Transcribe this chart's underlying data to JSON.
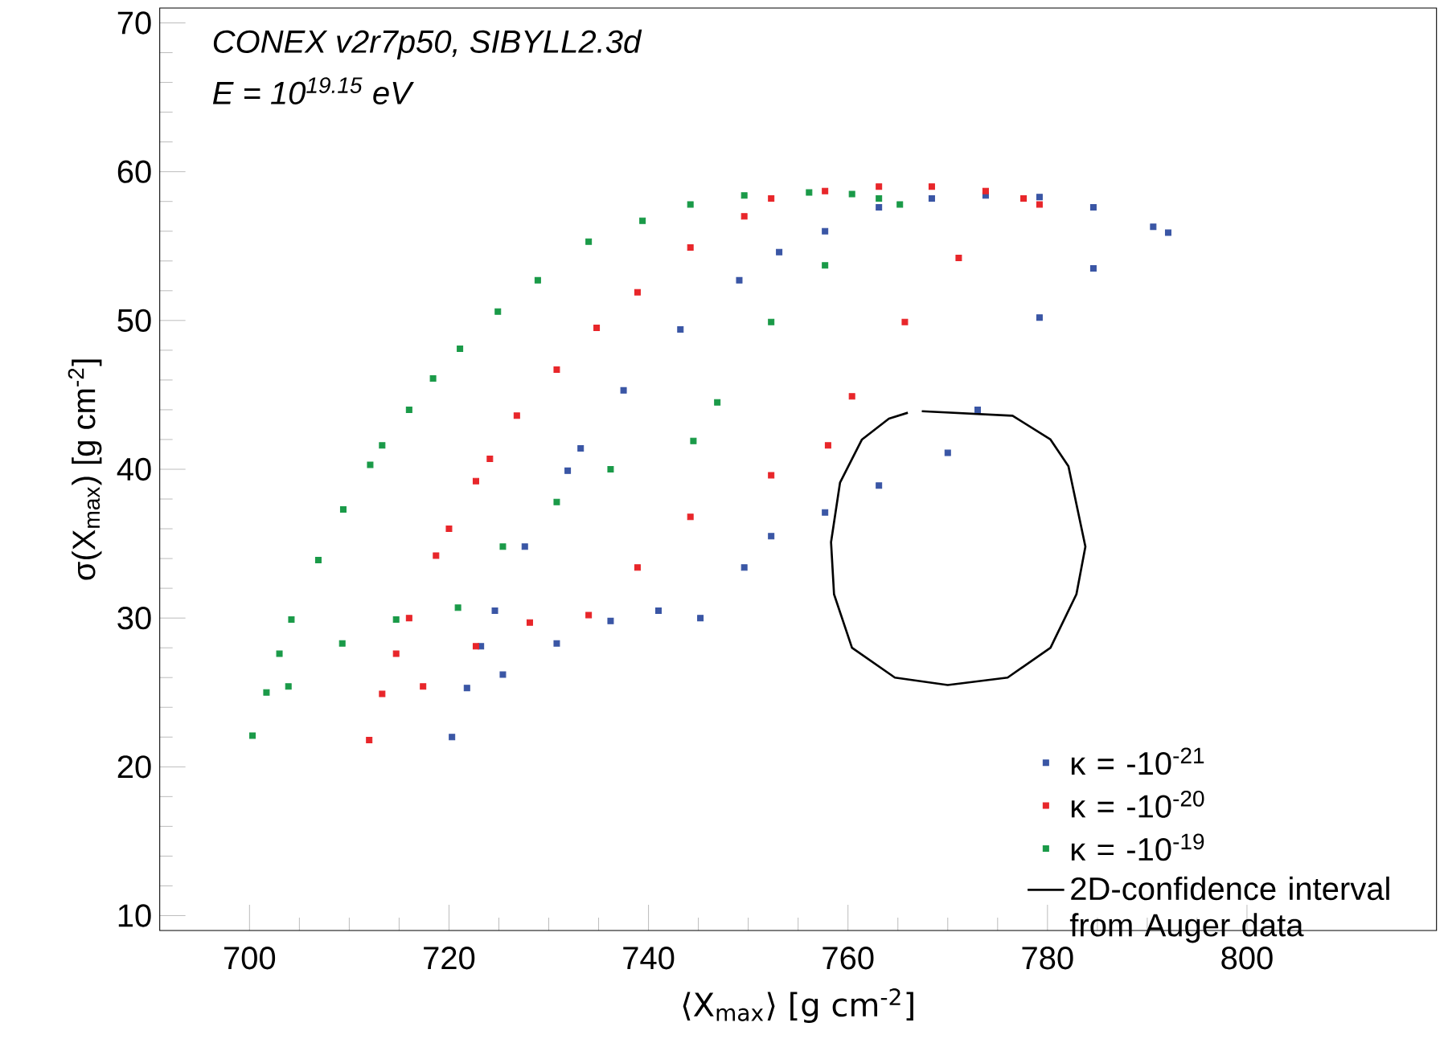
{
  "chart_data": {
    "type": "scatter",
    "xlabel": "⟨X$_{max}$⟩ [g cm$^{-2}$]",
    "ylabel": "σ(X$_{max}$) [g cm$^{-2}$]",
    "annotations": [
      "CONEX v2r7p50, SIBYLL2.3d",
      "E = 10$^{19.15}$ eV"
    ],
    "xlim": [
      691,
      819
    ],
    "ylim": [
      9,
      71
    ],
    "xticks": [
      700,
      720,
      740,
      760,
      780,
      800
    ],
    "yticks": [
      10,
      20,
      30,
      40,
      50,
      60,
      70
    ],
    "marker": "square",
    "legend": "bottom right",
    "series": [
      {
        "name": "κ = -10$^{-21}$",
        "color": "#3a56a5",
        "x": [
          720.3,
          725.4,
          730.8,
          736.2,
          741.0,
          745.2,
          749.6,
          752.3,
          757.7,
          763.1,
          770.0,
          773.0,
          779.2,
          784.6,
          792.1,
          790.6,
          784.6,
          779.2,
          773.8,
          768.4,
          763.1,
          757.7,
          753.1,
          749.1,
          743.2,
          737.5,
          733.2,
          731.9,
          727.6,
          724.6,
          723.2,
          721.8
        ],
        "values": [
          22.0,
          26.2,
          28.3,
          29.8,
          30.5,
          30.0,
          33.4,
          35.5,
          37.1,
          38.9,
          41.1,
          44.0,
          50.2,
          53.5,
          55.9,
          56.3,
          57.6,
          58.3,
          58.4,
          58.2,
          57.6,
          56.0,
          54.6,
          52.7,
          49.4,
          45.3,
          41.4,
          39.9,
          34.8,
          30.5,
          28.1,
          25.3
        ]
      },
      {
        "name": "κ = -10$^{-20}$",
        "color": "#e8262a",
        "x": [
          712.0,
          717.4,
          722.7,
          728.1,
          734.0,
          738.9,
          744.2,
          752.3,
          758.0,
          760.4,
          765.7,
          771.1,
          779.2,
          777.6,
          773.8,
          768.4,
          763.1,
          757.7,
          752.3,
          749.6,
          744.2,
          738.9,
          734.8,
          730.8,
          726.8,
          724.1,
          722.7,
          720.0,
          718.7,
          716.0,
          714.7,
          713.3
        ],
        "values": [
          21.8,
          25.4,
          28.1,
          29.7,
          30.2,
          33.4,
          36.8,
          39.6,
          41.6,
          44.9,
          49.9,
          54.2,
          57.8,
          58.2,
          58.7,
          59.0,
          59.0,
          58.7,
          58.2,
          57.0,
          54.9,
          51.9,
          49.5,
          46.7,
          43.6,
          40.7,
          39.2,
          36.0,
          34.2,
          30.0,
          27.6,
          24.9
        ]
      },
      {
        "name": "κ = -10$^{-19}$",
        "color": "#1a9a48",
        "x": [
          700.3,
          703.9,
          709.3,
          714.7,
          720.9,
          725.4,
          730.8,
          736.2,
          744.5,
          746.9,
          752.3,
          757.7,
          765.2,
          763.1,
          760.4,
          756.1,
          749.6,
          744.2,
          739.4,
          734.0,
          728.9,
          724.9,
          721.1,
          718.4,
          716.0,
          713.3,
          712.1,
          709.4,
          706.9,
          704.2,
          703.0,
          701.7
        ],
        "values": [
          22.1,
          25.4,
          28.3,
          29.9,
          30.7,
          34.8,
          37.8,
          40.0,
          41.9,
          44.5,
          49.9,
          53.7,
          57.8,
          58.2,
          58.5,
          58.6,
          58.4,
          57.8,
          56.7,
          55.3,
          52.7,
          50.6,
          48.1,
          46.1,
          44.0,
          41.6,
          40.3,
          37.3,
          33.9,
          29.9,
          27.6,
          25.0
        ]
      },
      {
        "name": "2D-confidence interval from Auger data",
        "type": "line",
        "marker": "none",
        "color": "#000000",
        "x": [
          767.4,
          776.5,
          780.3,
          782.1,
          783.8,
          782.9,
          780.3,
          776.0,
          770.0,
          764.7,
          760.4,
          758.6,
          758.3,
          759.2,
          761.4,
          764.1,
          766.0
        ],
        "values": [
          43.9,
          43.6,
          42.0,
          40.2,
          34.8,
          31.6,
          28.0,
          26.0,
          25.5,
          26.0,
          28.0,
          31.6,
          35.1,
          39.1,
          42.0,
          43.4,
          43.8
        ]
      }
    ]
  }
}
